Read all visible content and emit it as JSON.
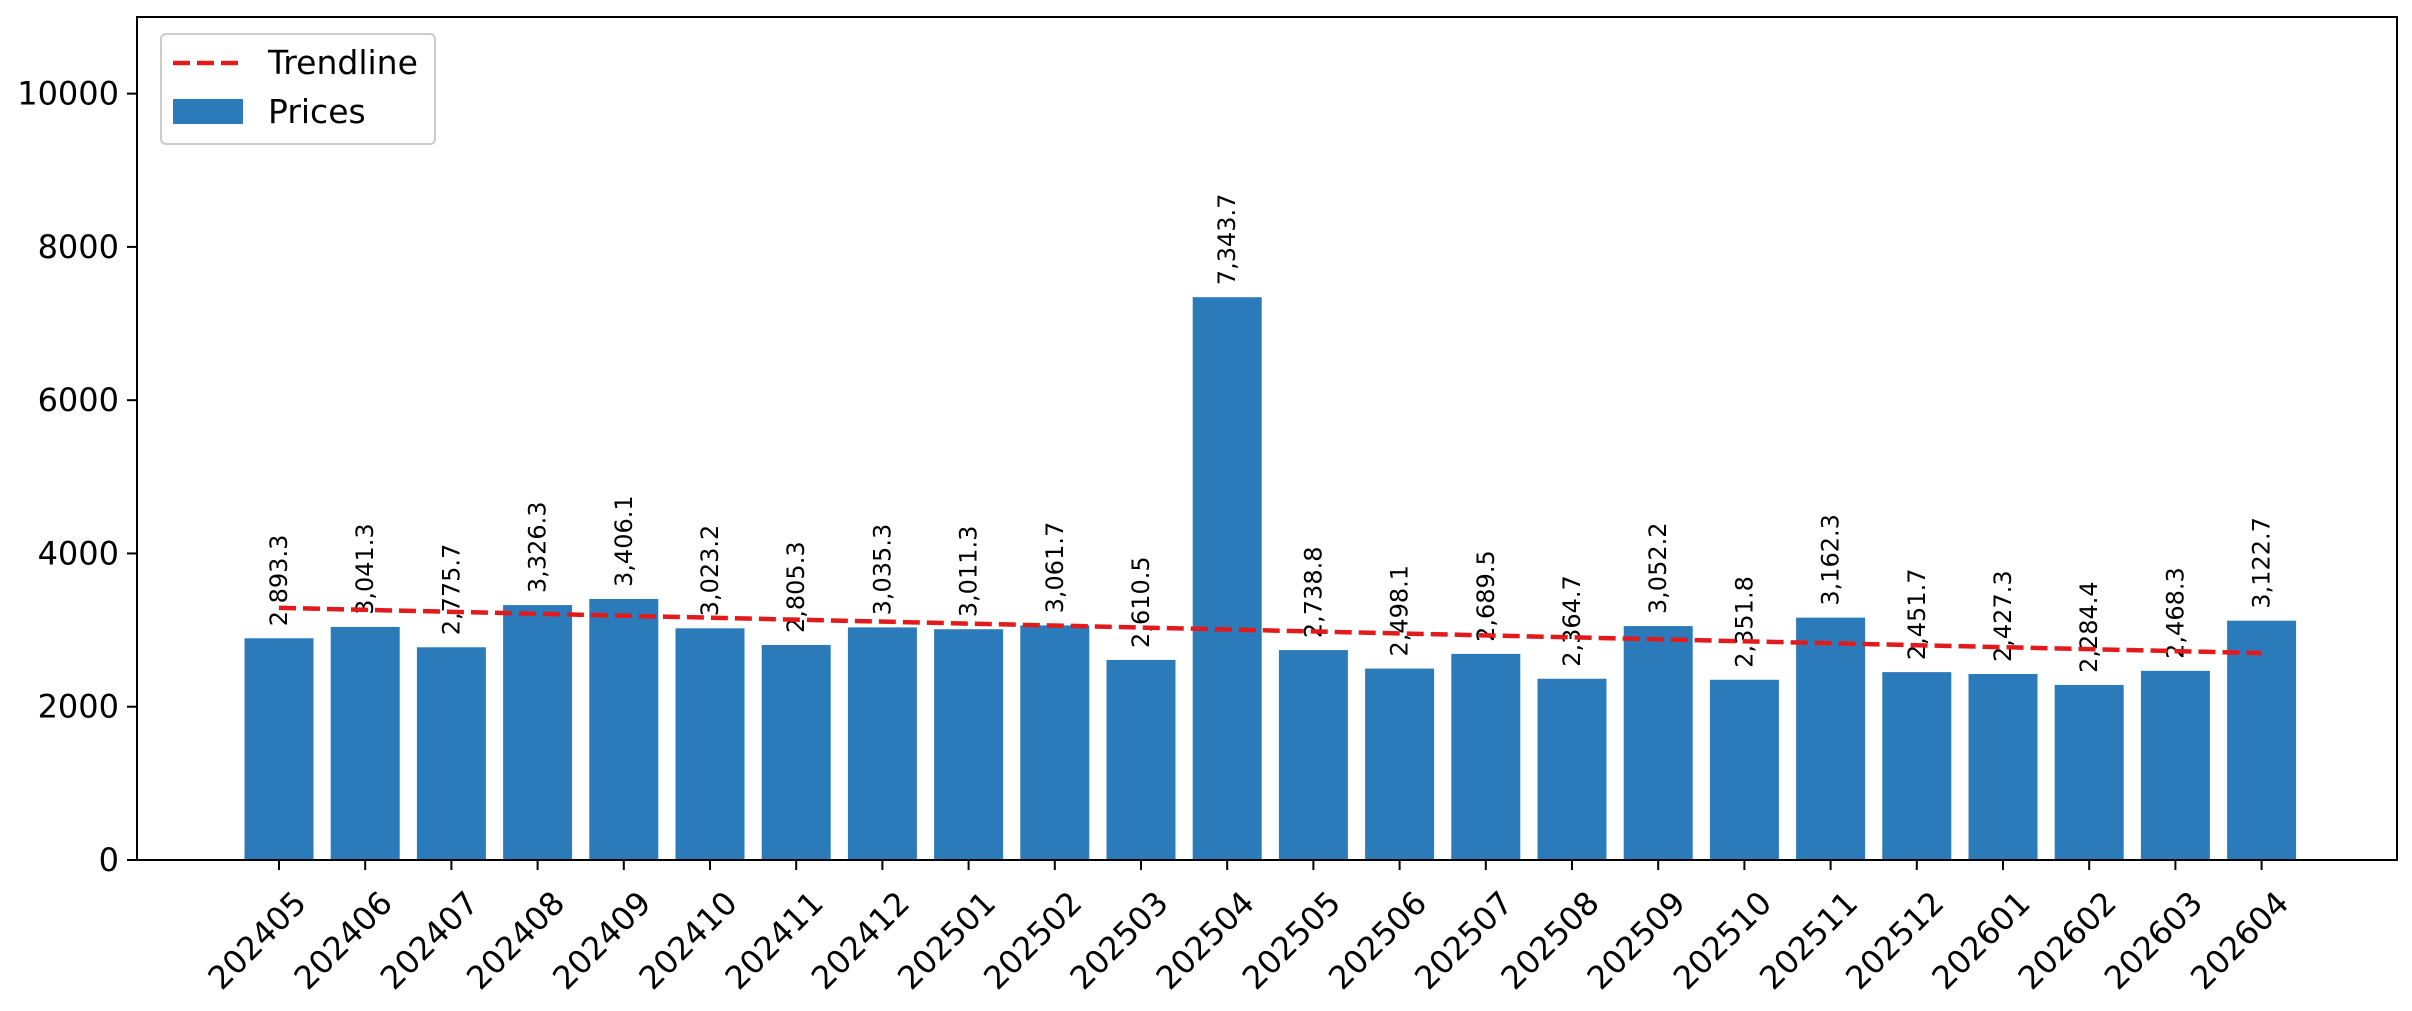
{
  "chart_data": {
    "type": "bar",
    "title": "",
    "xlabel": "",
    "ylabel": "",
    "ylim": [
      0,
      11000
    ],
    "yticks": [
      0,
      2000,
      4000,
      6000,
      8000,
      10000
    ],
    "grid": false,
    "legend_position": "top-left",
    "categories": [
      "202405",
      "202406",
      "202407",
      "202408",
      "202409",
      "202410",
      "202411",
      "202412",
      "202501",
      "202502",
      "202503",
      "202504",
      "202505",
      "202506",
      "202507",
      "202508",
      "202509",
      "202510",
      "202511",
      "202512",
      "202601",
      "202602",
      "202603",
      "202604"
    ],
    "series": [
      {
        "name": "Prices",
        "kind": "bar",
        "color": "#2b7bba",
        "values": [
          2893.3,
          3041.3,
          2775.7,
          3326.3,
          3406.1,
          3023.2,
          2805.3,
          3035.3,
          3011.3,
          3061.7,
          2610.5,
          7343.7,
          2738.8,
          2498.1,
          2689.5,
          2364.7,
          3052.2,
          2351.8,
          3162.3,
          2451.7,
          2427.3,
          2284.4,
          2468.3,
          3122.7
        ],
        "labels": [
          "2,893.3",
          "3,041.3",
          "2,775.7",
          "3,326.3",
          "3,406.1",
          "3,023.2",
          "2,805.3",
          "3,035.3",
          "3,011.3",
          "3,061.7",
          "2,610.5",
          "7,343.7",
          "2,738.8",
          "2,498.1",
          "2,689.5",
          "2,364.7",
          "3,052.2",
          "2,351.8",
          "3,162.3",
          "2,451.7",
          "2,427.3",
          "2,284.4",
          "2,468.3",
          "3,122.7"
        ]
      },
      {
        "name": "Trendline",
        "kind": "line",
        "style": "dashed",
        "color": "#e31a1c",
        "start": 3290,
        "end": 2700
      }
    ]
  }
}
